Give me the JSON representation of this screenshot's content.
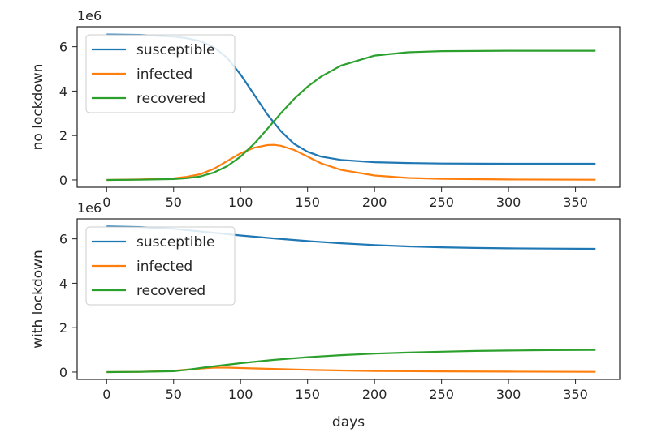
{
  "chart_data": [
    {
      "type": "line",
      "xlabel": "",
      "ylabel": "no lockdown",
      "offset_text": "1e6",
      "xlim": [
        -22,
        383
      ],
      "ylim": [
        -0.33,
        6.9
      ],
      "x_ticks": [
        0,
        50,
        100,
        150,
        200,
        250,
        300,
        350
      ],
      "y_ticks": [
        0,
        2,
        4,
        6
      ],
      "legend_position": "upper left",
      "series": [
        {
          "name": "susceptible",
          "color": "#1f77b4",
          "x": [
            0,
            25,
            50,
            60,
            70,
            80,
            90,
            100,
            110,
            120,
            130,
            140,
            150,
            160,
            175,
            200,
            225,
            250,
            300,
            365
          ],
          "y": [
            6.55,
            6.53,
            6.45,
            6.38,
            6.25,
            5.98,
            5.5,
            4.75,
            3.85,
            2.95,
            2.2,
            1.62,
            1.27,
            1.05,
            0.9,
            0.8,
            0.76,
            0.74,
            0.73,
            0.73
          ]
        },
        {
          "name": "infected",
          "color": "#ff7f0e",
          "x": [
            0,
            25,
            50,
            60,
            70,
            80,
            90,
            100,
            110,
            120,
            125,
            130,
            140,
            150,
            160,
            175,
            200,
            225,
            250,
            300,
            365
          ],
          "y": [
            0.0,
            0.02,
            0.07,
            0.14,
            0.26,
            0.5,
            0.85,
            1.2,
            1.45,
            1.57,
            1.58,
            1.54,
            1.35,
            1.05,
            0.75,
            0.45,
            0.2,
            0.09,
            0.05,
            0.02,
            0.01
          ]
        },
        {
          "name": "recovered",
          "color": "#2ca02c",
          "x": [
            0,
            25,
            50,
            60,
            70,
            80,
            90,
            100,
            110,
            120,
            130,
            140,
            150,
            160,
            175,
            200,
            225,
            250,
            300,
            365
          ],
          "y": [
            0.0,
            0.01,
            0.04,
            0.08,
            0.16,
            0.33,
            0.62,
            1.05,
            1.62,
            2.3,
            3.0,
            3.65,
            4.2,
            4.65,
            5.15,
            5.6,
            5.75,
            5.8,
            5.82,
            5.82
          ]
        }
      ]
    },
    {
      "type": "line",
      "xlabel": "days",
      "ylabel": "with lockdown",
      "offset_text": "1e6",
      "xlim": [
        -22,
        383
      ],
      "ylim": [
        -0.33,
        6.9
      ],
      "x_ticks": [
        0,
        50,
        100,
        150,
        200,
        250,
        300,
        350
      ],
      "y_ticks": [
        0,
        2,
        4,
        6
      ],
      "legend_position": "upper left",
      "series": [
        {
          "name": "susceptible",
          "color": "#1f77b4",
          "x": [
            0,
            25,
            50,
            75,
            100,
            125,
            150,
            175,
            200,
            225,
            250,
            275,
            300,
            330,
            365
          ],
          "y": [
            6.56,
            6.53,
            6.45,
            6.3,
            6.15,
            6.02,
            5.9,
            5.8,
            5.72,
            5.66,
            5.62,
            5.59,
            5.57,
            5.56,
            5.55
          ]
        },
        {
          "name": "infected",
          "color": "#ff7f0e",
          "x": [
            0,
            25,
            50,
            60,
            70,
            80,
            90,
            100,
            125,
            150,
            175,
            200,
            250,
            300,
            365
          ],
          "y": [
            0.0,
            0.01,
            0.06,
            0.11,
            0.16,
            0.2,
            0.2,
            0.18,
            0.14,
            0.1,
            0.07,
            0.05,
            0.03,
            0.02,
            0.01
          ]
        },
        {
          "name": "recovered",
          "color": "#2ca02c",
          "x": [
            0,
            25,
            50,
            60,
            75,
            100,
            125,
            150,
            175,
            200,
            225,
            250,
            275,
            300,
            330,
            365
          ],
          "y": [
            0.0,
            0.01,
            0.04,
            0.1,
            0.22,
            0.4,
            0.55,
            0.67,
            0.76,
            0.83,
            0.88,
            0.92,
            0.95,
            0.97,
            0.99,
            1.0
          ]
        }
      ]
    }
  ]
}
